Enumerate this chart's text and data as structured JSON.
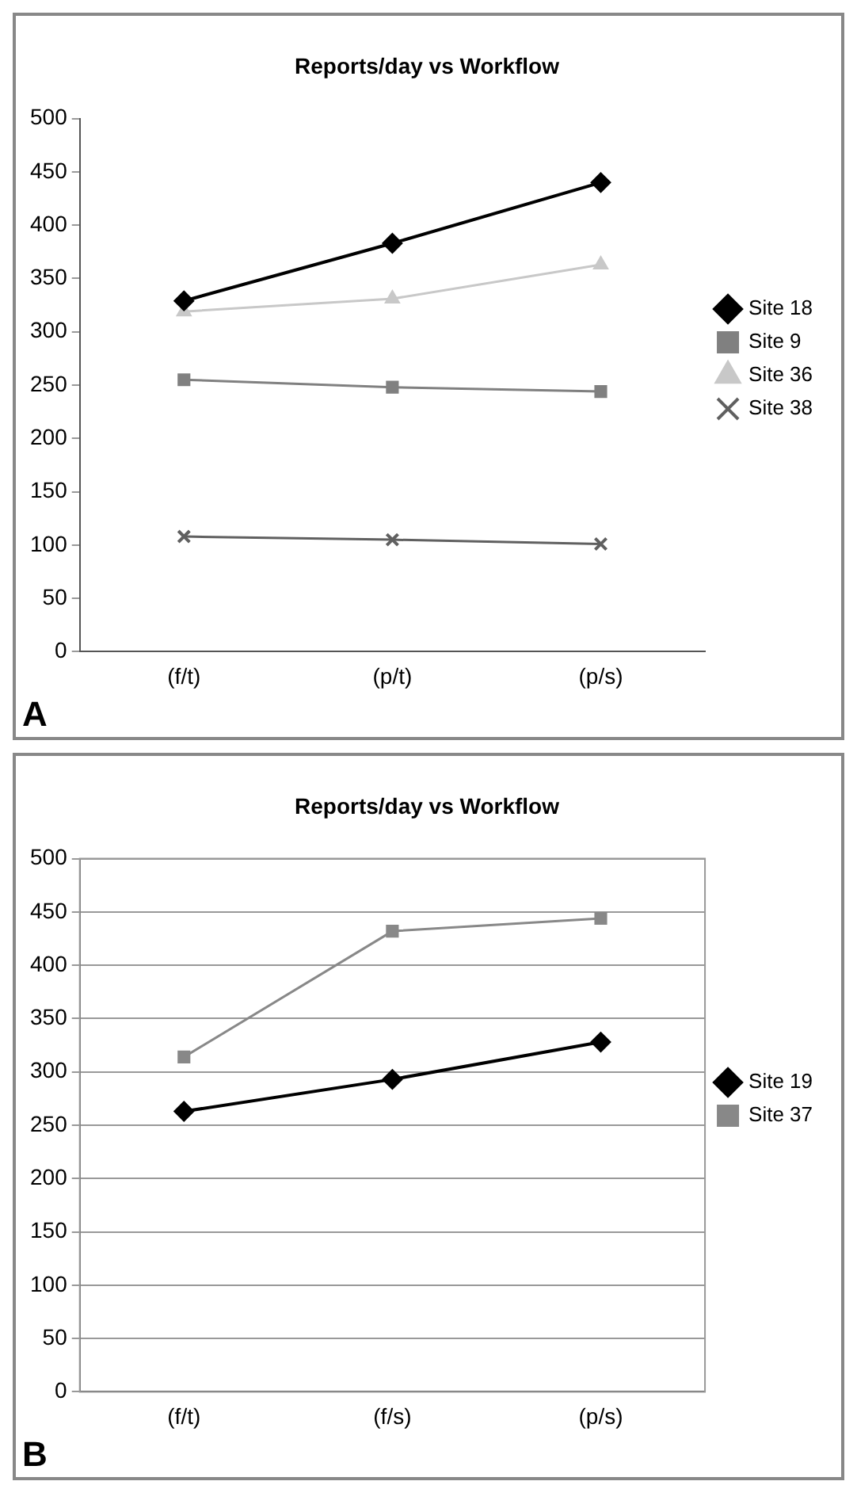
{
  "chart_data": [
    {
      "type": "line",
      "title": "Reports/day vs Workflow",
      "categories": [
        "(f/t)",
        "(p/t)",
        "(p/s)"
      ],
      "series": [
        {
          "name": "Site 18",
          "color": "#000000",
          "marker": "diamond",
          "values": [
            329,
            383,
            440
          ]
        },
        {
          "name": "Site 9",
          "color": "#808080",
          "marker": "square",
          "values": [
            255,
            248,
            244
          ]
        },
        {
          "name": "Site 36",
          "color": "#c8c8c8",
          "marker": "triangle",
          "values": [
            319,
            331,
            363
          ]
        },
        {
          "name": "Site 38",
          "color": "#606060",
          "marker": "cross",
          "values": [
            108,
            105,
            101
          ]
        }
      ],
      "ylim": [
        0,
        500
      ],
      "yticks": [
        0,
        50,
        100,
        150,
        200,
        250,
        300,
        350,
        400,
        450,
        500
      ],
      "grid": false,
      "legend": "right",
      "annotations": [
        "A"
      ]
    },
    {
      "type": "line",
      "title": "Reports/day vs Workflow",
      "categories": [
        "(f/t)",
        "(f/s)",
        "(p/s)"
      ],
      "series": [
        {
          "name": "Site 19",
          "color": "#000000",
          "marker": "diamond",
          "values": [
            263,
            293,
            328
          ]
        },
        {
          "name": "Site 37",
          "color": "#888888",
          "marker": "square",
          "values": [
            314,
            432,
            444
          ]
        }
      ],
      "ylim": [
        0,
        500
      ],
      "yticks": [
        0,
        50,
        100,
        150,
        200,
        250,
        300,
        350,
        400,
        450,
        500
      ],
      "grid": "y",
      "legend": "right",
      "annotations": [
        "B"
      ]
    }
  ]
}
